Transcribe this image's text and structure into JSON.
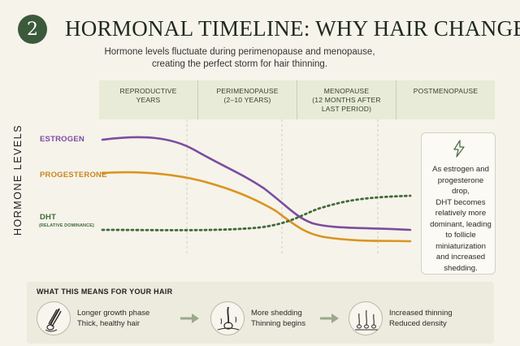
{
  "header": {
    "number": "2",
    "title": "HORMONAL TIMELINE: WHY HAIR CHANGES",
    "subtitle_line1": "Hormone levels fluctuate during perimenopause and menopause,",
    "subtitle_line2": "creating the perfect storm for hair thinning."
  },
  "phases": [
    {
      "line1": "REPRODUCTIVE",
      "line2": "YEARS",
      "line3": ""
    },
    {
      "line1": "PERIMENOPAUSE",
      "line2": "(2–10 YEARS)",
      "line3": ""
    },
    {
      "line1": "MENOPAUSE",
      "line2": "(12 MONTHS AFTER",
      "line3": "LAST PERIOD)"
    },
    {
      "line1": "POSTMENOPAUSE",
      "line2": "",
      "line3": ""
    }
  ],
  "chart": {
    "y_axis_label": "HORMONE LEVELS",
    "estrogen_label": "ESTROGEN",
    "progesterone_label": "PROGESTERONE",
    "dht_label": "DHT",
    "dht_sublabel": "(RELATIVE DOMINANCE)",
    "colors": {
      "estrogen": "#7a4da0",
      "progesterone": "#d9951f",
      "dht": "#3f6a3a"
    }
  },
  "callout": {
    "icon": "lightning-icon",
    "text": [
      "As estrogen and",
      "progesterone drop,",
      "DHT becomes",
      "relatively more",
      "dominant, leading",
      "to follicle",
      "miniaturization",
      "and increased",
      "shedding."
    ]
  },
  "hair_effects": {
    "title": "WHAT THIS MEANS FOR YOUR HAIR",
    "steps": [
      {
        "icon": "healthy-hair-icon",
        "line1": "Longer growth phase",
        "line2": "Thick, healthy hair"
      },
      {
        "icon": "shedding-follicle-icon",
        "line1": "More shedding",
        "line2": "Thinning begins"
      },
      {
        "icon": "thinning-follicles-icon",
        "line1": "Increased thinning",
        "line2": "Reduced density"
      }
    ]
  }
}
